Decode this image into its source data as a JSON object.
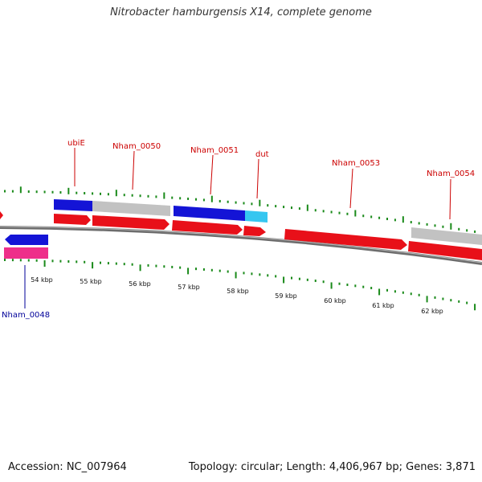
{
  "title": "Nitrobacter hamburgensis X14, complete genome",
  "accession": "Accession: NC_007964",
  "topology": "Topology: circular; Length: 4,406,967 bp; Genes: 3,871",
  "colors": {
    "gene_label_forward": "#cc0000",
    "gene_label_reverse": "#000099",
    "tick_color": "#1a8a1a",
    "backbone": "#777777",
    "cds_red": "#e8101a",
    "cds_blue": "#1010d8",
    "cds_gray": "#c0c0c0",
    "cds_cyan": "#33c8f0",
    "cds_pink": "#ee2f8a"
  },
  "scale": {
    "unit": "kbp",
    "tick_labels": [
      "54 kbp",
      "55 kbp",
      "56 kbp",
      "57 kbp",
      "58 kbp",
      "59 kbp",
      "60 kbp",
      "61 kbp",
      "62 kbp"
    ]
  },
  "gene_labels": [
    {
      "name": "ubiE",
      "strand": "forward"
    },
    {
      "name": "Nham_0050",
      "strand": "forward"
    },
    {
      "name": "Nham_0051",
      "strand": "forward"
    },
    {
      "name": "dut",
      "strand": "forward"
    },
    {
      "name": "Nham_0053",
      "strand": "forward"
    },
    {
      "name": "Nham_0054",
      "strand": "forward"
    },
    {
      "name": "Nham_0048",
      "strand": "reverse"
    }
  ]
}
